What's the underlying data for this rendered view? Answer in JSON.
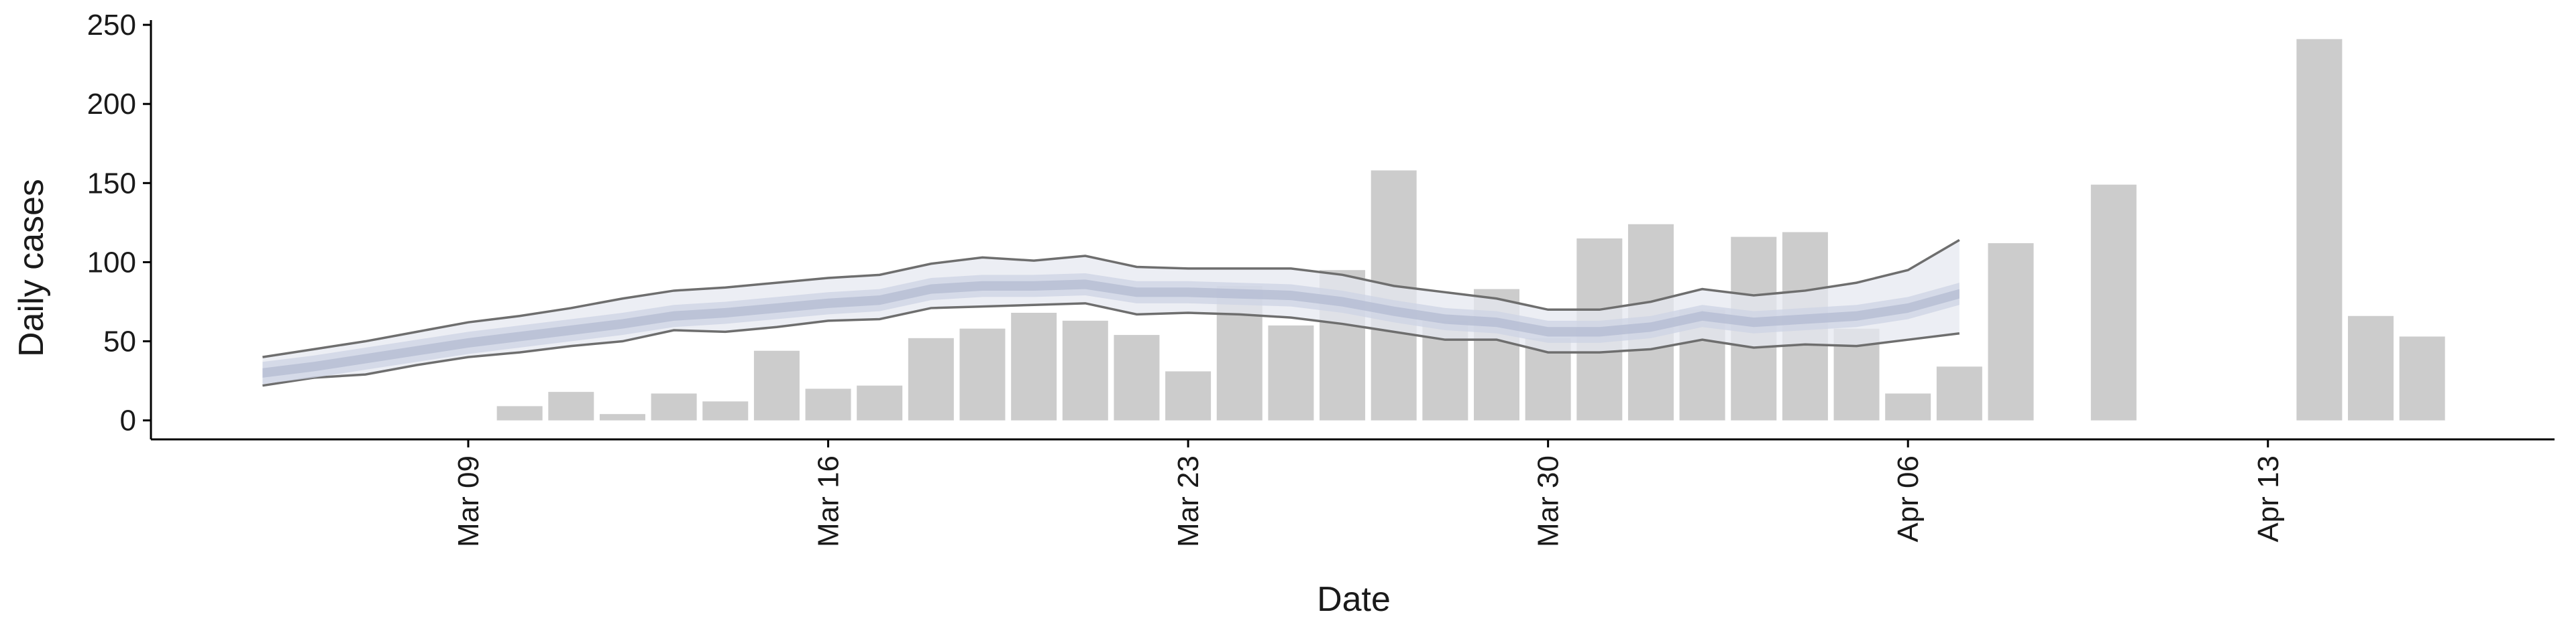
{
  "chart_data": {
    "type": "bar",
    "xlabel": "Date",
    "ylabel": "Daily cases",
    "x": [
      "Mar 05",
      "Mar 06",
      "Mar 07",
      "Mar 08",
      "Mar 09",
      "Mar 10",
      "Mar 11",
      "Mar 12",
      "Mar 13",
      "Mar 14",
      "Mar 15",
      "Mar 16",
      "Mar 17",
      "Mar 18",
      "Mar 19",
      "Mar 20",
      "Mar 21",
      "Mar 22",
      "Mar 23",
      "Mar 24",
      "Mar 25",
      "Mar 26",
      "Mar 27",
      "Mar 28",
      "Mar 29",
      "Mar 30",
      "Mar 31",
      "Apr 01",
      "Apr 02",
      "Apr 03",
      "Apr 04",
      "Apr 05",
      "Apr 06",
      "Apr 07",
      "Apr 08",
      "Apr 09",
      "Apr 10",
      "Apr 11",
      "Apr 12",
      "Apr 13",
      "Apr 14",
      "Apr 15",
      "Apr 16"
    ],
    "values": [
      null,
      null,
      null,
      null,
      null,
      9,
      18,
      4,
      17,
      12,
      44,
      20,
      22,
      52,
      58,
      68,
      63,
      54,
      31,
      85,
      60,
      95,
      158,
      63,
      83,
      52,
      115,
      124,
      70,
      116,
      119,
      58,
      17,
      34,
      112,
      null,
      149,
      null,
      null,
      null,
      241,
      66,
      53
    ],
    "color": "#cccccc",
    "bands": [
      {
        "color": "#e6e8f0",
        "line_color": "#6e6e6e",
        "lower": [
          22,
          27,
          29,
          35,
          40,
          43,
          47,
          50,
          57,
          56,
          59,
          63,
          64,
          71,
          72,
          73,
          74,
          67,
          68,
          67,
          65,
          61,
          56,
          51,
          51,
          43,
          43,
          45,
          51,
          46,
          48,
          47,
          51,
          55,
          null,
          null,
          null,
          null,
          null,
          null,
          null,
          null,
          null
        ],
        "upper": [
          40,
          45,
          50,
          56,
          62,
          66,
          71,
          77,
          82,
          84,
          87,
          90,
          92,
          99,
          103,
          101,
          104,
          97,
          96,
          96,
          96,
          92,
          85,
          81,
          77,
          70,
          70,
          75,
          83,
          79,
          82,
          87,
          95,
          114,
          null,
          null,
          null,
          null,
          null,
          null,
          null,
          null,
          null
        ]
      },
      {
        "color": "#cdd3e4",
        "lower": [
          23,
          27,
          32,
          37,
          42,
          46,
          50,
          54,
          59,
          61,
          64,
          67,
          69,
          76,
          78,
          78,
          79,
          74,
          74,
          73,
          72,
          68,
          62,
          57,
          55,
          49,
          49,
          52,
          59,
          55,
          57,
          59,
          64,
          73,
          null,
          null,
          null,
          null,
          null,
          null,
          null,
          null,
          null
        ],
        "upper": [
          37,
          41,
          46,
          51,
          56,
          60,
          64,
          68,
          73,
          75,
          78,
          81,
          83,
          90,
          92,
          92,
          93,
          88,
          88,
          87,
          86,
          82,
          76,
          71,
          69,
          63,
          63,
          66,
          73,
          69,
          71,
          73,
          78,
          87,
          null,
          null,
          null,
          null,
          null,
          null,
          null,
          null,
          null
        ]
      },
      {
        "color": "#b3bbd2",
        "lower": [
          27,
          31,
          36,
          41,
          46,
          50,
          54,
          58,
          63,
          65,
          68,
          71,
          73,
          80,
          82,
          82,
          83,
          78,
          78,
          77,
          76,
          72,
          66,
          61,
          59,
          53,
          53,
          56,
          63,
          59,
          61,
          63,
          68,
          77,
          null,
          null,
          null,
          null,
          null,
          null,
          null,
          null,
          null
        ],
        "upper": [
          33,
          37,
          42,
          47,
          52,
          56,
          60,
          64,
          69,
          71,
          74,
          77,
          79,
          86,
          88,
          88,
          89,
          84,
          84,
          83,
          82,
          78,
          72,
          67,
          65,
          59,
          59,
          62,
          69,
          65,
          67,
          69,
          74,
          83,
          null,
          null,
          null,
          null,
          null,
          null,
          null,
          null,
          null
        ]
      }
    ],
    "ylim": [
      -12,
      253
    ],
    "yticks": [
      0,
      50,
      100,
      150,
      200,
      250
    ],
    "xticks": [
      "Mar 09",
      "Mar 16",
      "Mar 23",
      "Mar 30",
      "Apr 06",
      "Apr 13"
    ]
  }
}
